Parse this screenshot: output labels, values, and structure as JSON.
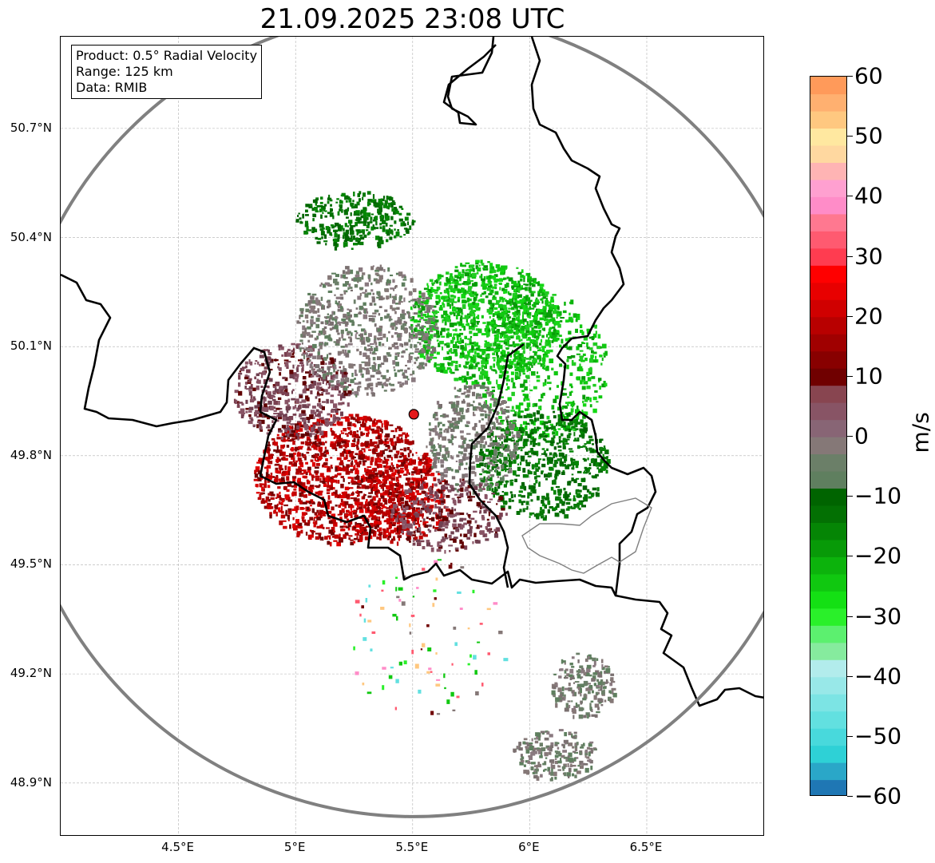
{
  "title": "21.09.2025 23:08 UTC",
  "info_box": {
    "product": "Product: 0.5° Radial Velocity",
    "range": "Range: 125 km",
    "data": "Data: RMIB"
  },
  "map": {
    "lat_ticks": [
      "50.7°N",
      "50.4°N",
      "50.1°N",
      "49.8°N",
      "49.5°N",
      "49.2°N",
      "48.9°N"
    ],
    "lon_ticks": [
      "4.5°E",
      "5°E",
      "5.5°E",
      "6°E",
      "6.5°E"
    ],
    "radar_site": {
      "lon": 5.505,
      "lat": 49.914
    },
    "range_ring_km": 125
  },
  "colorbar": {
    "label": "m/s",
    "ticks": [
      "60",
      "50",
      "40",
      "30",
      "20",
      "10",
      "0",
      "−10",
      "−20",
      "−30",
      "−40",
      "−50",
      "−60"
    ],
    "min": -60,
    "max": 60,
    "colors": [
      "#1f77b4",
      "#2aa7c8",
      "#2ed1d6",
      "#48d9dc",
      "#62e0e0",
      "#7ce4e4",
      "#98e8e8",
      "#b2ecec",
      "#86eb9e",
      "#5cf06f",
      "#2af02a",
      "#14e014",
      "#10c810",
      "#0cb30c",
      "#089a08",
      "#058505",
      "#037003",
      "#006400",
      "#5f7f5f",
      "#6b7f68",
      "#857877",
      "#886575",
      "#885465",
      "#884550",
      "#700000",
      "#880000",
      "#a00000",
      "#b80000",
      "#d00000",
      "#e80000",
      "#ff0000",
      "#ff3c50",
      "#ff5a70",
      "#ff7890",
      "#ff8cc8",
      "#ffa0d0",
      "#ffb4b4",
      "#ffd8a0",
      "#ffe8a0",
      "#ffc880",
      "#ffb070",
      "#ff9a5a"
    ]
  },
  "theme": {
    "range_ring": "#808080",
    "border": "#000000",
    "grid": "#b0b0b0"
  }
}
